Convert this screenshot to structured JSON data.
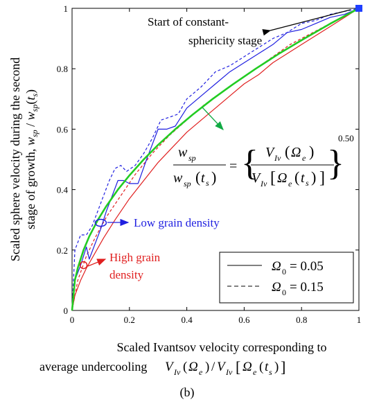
{
  "chart_data": {
    "type": "line",
    "xlabel_line1": "Scaled Ivantsov velocity corresponding to",
    "xlabel_line2": "average undercooling",
    "xlabel_math": "V_Iv(Ω_e)/V_Iv[Ω_e(t_s)]",
    "ylabel_line1": "Scaled sphere velocity during the second",
    "ylabel_line2": "stage of growth, w_sp / w_sp(t_s)",
    "caption": "(b)",
    "xlim": [
      0,
      1
    ],
    "ylim": [
      0,
      1
    ],
    "xticks": [
      0,
      0.2,
      0.4,
      0.6,
      0.8,
      1
    ],
    "yticks": [
      0,
      0.2,
      0.4,
      0.6,
      0.8,
      1
    ],
    "xtick_labels": [
      "0",
      "0.2",
      "0.4",
      "0.6",
      "0.8",
      "1"
    ],
    "ytick_labels": [
      "0",
      "0.2",
      "0.4",
      "0.6",
      "0.8",
      "1"
    ],
    "annotations": {
      "start": [
        "Start of constant-",
        "sphericity stage"
      ],
      "low": "Low grain density",
      "high": [
        "High grain",
        "density"
      ],
      "equation": "w_sp / w_sp(t_s) = { V_Iv(Ω_e) / V_Iv[Ω_e(t_s)] }^0.50",
      "exponent": "0.50"
    },
    "legend": {
      "position": "bottom-right",
      "entries": [
        {
          "style": "solid",
          "text": "Ω0 = 0.05"
        },
        {
          "style": "dashed",
          "text": "Ω0 = 0.15"
        }
      ]
    },
    "colors": {
      "blue": "#1f1fe0",
      "red": "#e01f1f",
      "green": "#22cc22",
      "marker": "#1f3fff"
    },
    "series": [
      {
        "color": "red",
        "style": "solid",
        "x": [
          0,
          0.01,
          0.03,
          0.05,
          0.08,
          0.11,
          0.15,
          0.2,
          0.25,
          0.3,
          0.35,
          0.4,
          0.45,
          0.5,
          0.55,
          0.6,
          0.65,
          0.7,
          0.75,
          0.8,
          0.85,
          0.9,
          0.95,
          1
        ],
        "y": [
          0,
          0.05,
          0.1,
          0.14,
          0.19,
          0.24,
          0.3,
          0.37,
          0.43,
          0.49,
          0.54,
          0.59,
          0.63,
          0.67,
          0.71,
          0.75,
          0.78,
          0.82,
          0.85,
          0.88,
          0.91,
          0.94,
          0.97,
          1
        ]
      },
      {
        "color": "red",
        "style": "dashed",
        "x": [
          0,
          0.02,
          0.05,
          0.08,
          0.12,
          0.17,
          0.22,
          0.28,
          0.34,
          0.4,
          0.46,
          0.52,
          0.58,
          0.64,
          0.7,
          0.76,
          0.82,
          0.88,
          0.94,
          1
        ],
        "y": [
          0,
          0.1,
          0.18,
          0.24,
          0.31,
          0.38,
          0.45,
          0.52,
          0.58,
          0.63,
          0.68,
          0.72,
          0.76,
          0.8,
          0.84,
          0.88,
          0.91,
          0.94,
          0.97,
          1
        ]
      },
      {
        "color": "blue",
        "style": "solid",
        "x": [
          0,
          0.01,
          0.03,
          0.05,
          0.06,
          0.08,
          0.1,
          0.12,
          0.14,
          0.16,
          0.18,
          0.2,
          0.23,
          0.26,
          0.3,
          0.33,
          0.36,
          0.4,
          0.45,
          0.5,
          0.55,
          0.6,
          0.65,
          0.7,
          0.75,
          0.8,
          0.85,
          0.9,
          0.95,
          1
        ],
        "y": [
          0,
          0.1,
          0.15,
          0.21,
          0.17,
          0.22,
          0.27,
          0.33,
          0.38,
          0.43,
          0.43,
          0.42,
          0.42,
          0.5,
          0.6,
          0.6,
          0.61,
          0.67,
          0.71,
          0.75,
          0.79,
          0.82,
          0.85,
          0.88,
          0.92,
          0.93,
          0.95,
          0.97,
          0.98,
          1
        ]
      },
      {
        "color": "blue",
        "style": "dashed",
        "x": [
          0,
          0.01,
          0.03,
          0.05,
          0.07,
          0.09,
          0.11,
          0.13,
          0.15,
          0.17,
          0.19,
          0.22,
          0.25,
          0.28,
          0.31,
          0.34,
          0.37,
          0.4,
          0.45,
          0.5,
          0.55,
          0.6,
          0.65,
          0.7,
          0.75,
          0.8,
          0.85,
          0.9,
          0.95,
          1
        ],
        "y": [
          0,
          0.2,
          0.25,
          0.25,
          0.28,
          0.33,
          0.38,
          0.43,
          0.47,
          0.48,
          0.46,
          0.48,
          0.52,
          0.57,
          0.63,
          0.64,
          0.65,
          0.7,
          0.74,
          0.79,
          0.81,
          0.84,
          0.87,
          0.9,
          0.92,
          0.95,
          0.96,
          0.98,
          0.99,
          1
        ]
      },
      {
        "color": "green",
        "style": "thick",
        "x": [
          0,
          0.01,
          0.02,
          0.04,
          0.06,
          0.09,
          0.12,
          0.16,
          0.2,
          0.25,
          0.3,
          0.36,
          0.42,
          0.49,
          0.56,
          0.64,
          0.72,
          0.81,
          0.9,
          1
        ],
        "y": [
          0,
          0.1,
          0.141,
          0.2,
          0.245,
          0.3,
          0.346,
          0.4,
          0.447,
          0.5,
          0.548,
          0.6,
          0.648,
          0.7,
          0.748,
          0.8,
          0.849,
          0.9,
          0.949,
          1
        ]
      }
    ],
    "markers": [
      {
        "name": "start-marker",
        "x": 1,
        "y": 1,
        "shape": "square",
        "color": "marker"
      },
      {
        "name": "low-marker",
        "x": 0.1,
        "y": 0.29,
        "shape": "ellipse",
        "color": "blue"
      },
      {
        "name": "high-marker",
        "x": 0.04,
        "y": 0.15,
        "shape": "circle",
        "color": "red"
      }
    ]
  }
}
